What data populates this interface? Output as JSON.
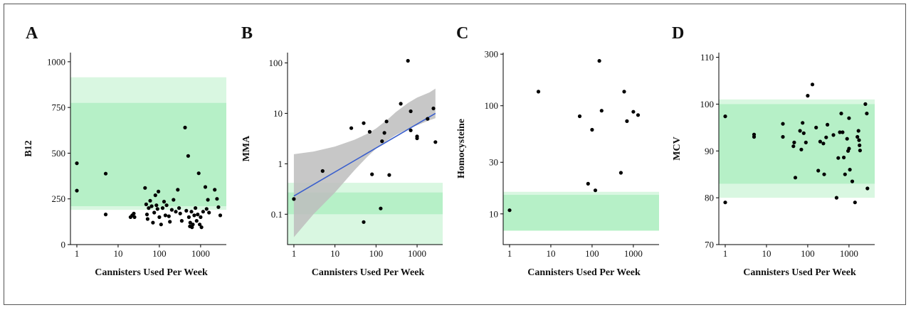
{
  "chart_data": [
    {
      "panel": "A",
      "type": "scatter",
      "xlabel": "Cannisters Used Per Week",
      "ylabel": "B12",
      "x_scale": "log",
      "y_scale": "linear",
      "xlim": [
        0.7,
        4200
      ],
      "ylim": [
        0,
        1050
      ],
      "x_ticks": [
        1,
        10,
        100,
        1000
      ],
      "x_tick_labels": [
        "1",
        "10",
        "100",
        "1000"
      ],
      "y_ticks": [
        0,
        250,
        500,
        750,
        1000
      ],
      "y_tick_labels": [
        "0",
        "250",
        "500",
        "750",
        "1000"
      ],
      "reference_bands": [
        {
          "from": 190,
          "to": 915,
          "color": "#d9f7e1"
        },
        {
          "from": 210,
          "to": 775,
          "color": "#b6f0c7"
        }
      ],
      "points": [
        [
          1,
          445
        ],
        [
          1,
          295
        ],
        [
          5,
          388
        ],
        [
          5,
          165
        ],
        [
          20,
          150
        ],
        [
          22,
          160
        ],
        [
          24,
          170
        ],
        [
          25,
          150
        ],
        [
          45,
          310
        ],
        [
          48,
          220
        ],
        [
          50,
          165
        ],
        [
          52,
          140
        ],
        [
          55,
          200
        ],
        [
          60,
          240
        ],
        [
          65,
          210
        ],
        [
          70,
          120
        ],
        [
          75,
          175
        ],
        [
          80,
          270
        ],
        [
          85,
          215
        ],
        [
          90,
          195
        ],
        [
          95,
          290
        ],
        [
          100,
          150
        ],
        [
          110,
          110
        ],
        [
          120,
          200
        ],
        [
          130,
          235
        ],
        [
          140,
          160
        ],
        [
          150,
          215
        ],
        [
          170,
          155
        ],
        [
          180,
          125
        ],
        [
          200,
          190
        ],
        [
          220,
          245
        ],
        [
          250,
          180
        ],
        [
          280,
          300
        ],
        [
          300,
          200
        ],
        [
          320,
          170
        ],
        [
          350,
          130
        ],
        [
          420,
          640
        ],
        [
          450,
          185
        ],
        [
          500,
          485
        ],
        [
          520,
          150
        ],
        [
          550,
          100
        ],
        [
          560,
          120
        ],
        [
          600,
          180
        ],
        [
          620,
          95
        ],
        [
          650,
          110
        ],
        [
          700,
          160
        ],
        [
          750,
          200
        ],
        [
          800,
          130
        ],
        [
          850,
          165
        ],
        [
          900,
          390
        ],
        [
          950,
          110
        ],
        [
          1000,
          150
        ],
        [
          1050,
          95
        ],
        [
          1150,
          180
        ],
        [
          1300,
          315
        ],
        [
          1400,
          195
        ],
        [
          1500,
          245
        ],
        [
          1600,
          175
        ],
        [
          2200,
          300
        ],
        [
          2500,
          250
        ],
        [
          2700,
          205
        ],
        [
          3000,
          160
        ]
      ]
    },
    {
      "panel": "B",
      "type": "scatter",
      "xlabel": "Cannisters Used Per Week",
      "ylabel": "MMA",
      "x_scale": "log",
      "y_scale": "log",
      "xlim": [
        0.7,
        4200
      ],
      "ylim": [
        0.025,
        160
      ],
      "x_ticks": [
        1,
        10,
        100,
        1000
      ],
      "x_tick_labels": [
        "1",
        "10",
        "100",
        "1000"
      ],
      "y_ticks": [
        0.1,
        1,
        10,
        100
      ],
      "y_tick_labels": [
        "0.1",
        "1",
        "10",
        "100"
      ],
      "reference_bands": [
        {
          "from": 0.025,
          "to": 0.42,
          "color": "#d9f7e1"
        },
        {
          "from": 0.1,
          "to": 0.27,
          "color": "#b6f0c7"
        }
      ],
      "regression_line": {
        "x": [
          1,
          2800
        ],
        "y": [
          0.23,
          10
        ],
        "color": "#3a5fcd"
      },
      "confidence_band": {
        "x": [
          1,
          3,
          10,
          30,
          60,
          100,
          200,
          300,
          600,
          1000,
          2000,
          2800
        ],
        "lower": [
          0.035,
          0.1,
          0.27,
          0.75,
          1.35,
          2.0,
          3.0,
          3.7,
          4.9,
          5.8,
          7.3,
          8.0
        ],
        "upper": [
          1.55,
          1.75,
          2.2,
          3.0,
          3.9,
          5.0,
          7.8,
          10.5,
          16.0,
          20.5,
          26.0,
          31.0
        ],
        "color": "#bdbdbd"
      },
      "points": [
        [
          1,
          0.2
        ],
        [
          5,
          0.72
        ],
        [
          25,
          5.1
        ],
        [
          50,
          6.4
        ],
        [
          50,
          0.07
        ],
        [
          70,
          4.3
        ],
        [
          80,
          0.62
        ],
        [
          130,
          0.13
        ],
        [
          140,
          2.8
        ],
        [
          160,
          4.1
        ],
        [
          180,
          6.9
        ],
        [
          210,
          0.6
        ],
        [
          400,
          15.5
        ],
        [
          600,
          110
        ],
        [
          700,
          11
        ],
        [
          700,
          4.6
        ],
        [
          1000,
          3.2
        ],
        [
          1000,
          3.5
        ],
        [
          1800,
          7.8
        ],
        [
          2500,
          12.5
        ],
        [
          2800,
          2.7
        ]
      ]
    },
    {
      "panel": "C",
      "type": "scatter",
      "xlabel": "Cannisters Used Per Week",
      "ylabel": "Homocysteine",
      "x_scale": "log",
      "y_scale": "log",
      "xlim": [
        0.7,
        4200
      ],
      "ylim": [
        5.2,
        310
      ],
      "x_ticks": [
        1,
        10,
        100,
        1000
      ],
      "x_tick_labels": [
        "1",
        "10",
        "100",
        "1000"
      ],
      "y_ticks": [
        10,
        30,
        100,
        300
      ],
      "y_tick_labels": [
        "10",
        "30",
        "100",
        "300"
      ],
      "reference_bands": [
        {
          "from": 7,
          "to": 16,
          "color": "#d9f7e1"
        },
        {
          "from": 7,
          "to": 15,
          "color": "#b6f0c7"
        }
      ],
      "points": [
        [
          1,
          10.8
        ],
        [
          5,
          135
        ],
        [
          50,
          80
        ],
        [
          80,
          19
        ],
        [
          100,
          60
        ],
        [
          120,
          16.5
        ],
        [
          150,
          260
        ],
        [
          170,
          90
        ],
        [
          500,
          24
        ],
        [
          600,
          135
        ],
        [
          700,
          72
        ],
        [
          1000,
          88
        ],
        [
          1300,
          82
        ]
      ]
    },
    {
      "panel": "D",
      "type": "scatter",
      "xlabel": "Cannisters Used Per Week",
      "ylabel": "MCV",
      "x_scale": "log",
      "y_scale": "linear",
      "xlim": [
        0.7,
        4200
      ],
      "ylim": [
        70,
        111
      ],
      "x_ticks": [
        1,
        10,
        100,
        1000
      ],
      "x_tick_labels": [
        "1",
        "10",
        "100",
        "1000"
      ],
      "y_ticks": [
        70,
        80,
        90,
        100,
        110
      ],
      "y_tick_labels": [
        "70",
        "80",
        "90",
        "100",
        "110"
      ],
      "reference_bands": [
        {
          "from": 80,
          "to": 101,
          "color": "#d9f7e1"
        },
        {
          "from": 83,
          "to": 100,
          "color": "#b6f0c7"
        }
      ],
      "points": [
        [
          1,
          97.4
        ],
        [
          1,
          79
        ],
        [
          5,
          93.5
        ],
        [
          5,
          93
        ],
        [
          25,
          93
        ],
        [
          25,
          95.8
        ],
        [
          45,
          91
        ],
        [
          47,
          91.8
        ],
        [
          50,
          84.3
        ],
        [
          65,
          94.3
        ],
        [
          70,
          90.3
        ],
        [
          75,
          96
        ],
        [
          80,
          93.8
        ],
        [
          90,
          91.8
        ],
        [
          100,
          101.8
        ],
        [
          130,
          104.2
        ],
        [
          160,
          95
        ],
        [
          180,
          85.8
        ],
        [
          200,
          92
        ],
        [
          240,
          91.6
        ],
        [
          250,
          85
        ],
        [
          280,
          92.9
        ],
        [
          300,
          95.6
        ],
        [
          420,
          93.4
        ],
        [
          500,
          80
        ],
        [
          550,
          88.5
        ],
        [
          600,
          94
        ],
        [
          650,
          98
        ],
        [
          700,
          94
        ],
        [
          750,
          88.6
        ],
        [
          800,
          85
        ],
        [
          900,
          92.6
        ],
        [
          950,
          90
        ],
        [
          1000,
          90.5
        ],
        [
          1000,
          97
        ],
        [
          1050,
          86
        ],
        [
          1200,
          83.5
        ],
        [
          1400,
          79
        ],
        [
          1600,
          93
        ],
        [
          1700,
          94.3
        ],
        [
          1750,
          92.3
        ],
        [
          1800,
          91.2
        ],
        [
          1850,
          90.1
        ],
        [
          2500,
          100
        ],
        [
          2700,
          98
        ],
        [
          2800,
          82
        ]
      ]
    }
  ]
}
